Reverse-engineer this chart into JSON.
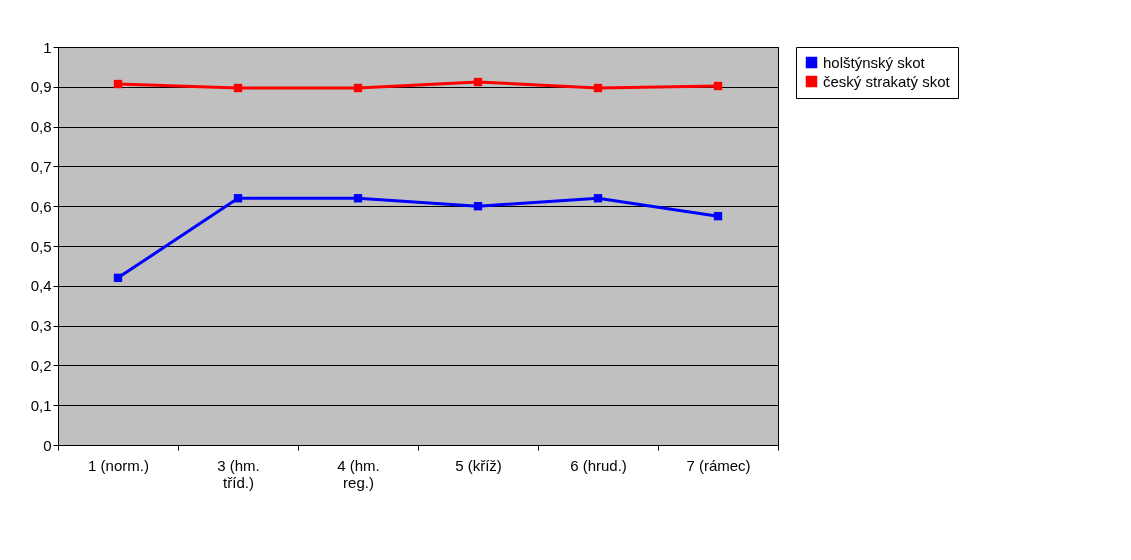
{
  "chart_data": {
    "type": "line",
    "categories": [
      "1 (norm.)",
      "3 (hm. tříd.)",
      "4 (hm. reg.)",
      "5 (kříž)",
      "6 (hrud.)",
      "7 (rámec)"
    ],
    "series": [
      {
        "name": "holštýnský skot",
        "color": "#0000ff",
        "values": [
          0.42,
          0.62,
          0.62,
          0.6,
          0.62,
          0.575
        ]
      },
      {
        "name": "český strakatý skot",
        "color": "#ff0000",
        "values": [
          0.907,
          0.897,
          0.897,
          0.912,
          0.897,
          0.902
        ]
      }
    ],
    "ylim": [
      0,
      1
    ],
    "yticks": [
      0,
      {
        "value": 0.1,
        "label": "0,1"
      },
      {
        "value": 0.2,
        "label": "0,2"
      },
      {
        "value": 0.3,
        "label": "0,3"
      },
      {
        "value": 0.4,
        "label": "0,4"
      },
      {
        "value": 0.5,
        "label": "0,5"
      },
      {
        "value": 0.6,
        "label": "0,6"
      },
      {
        "value": 0.7,
        "label": "0,7"
      },
      {
        "value": 0.8,
        "label": "0,8"
      },
      {
        "value": 0.9,
        "label": "0,9"
      },
      1
    ],
    "grid": "y",
    "legend": "right",
    "marker": "square",
    "line_style": "solid"
  }
}
